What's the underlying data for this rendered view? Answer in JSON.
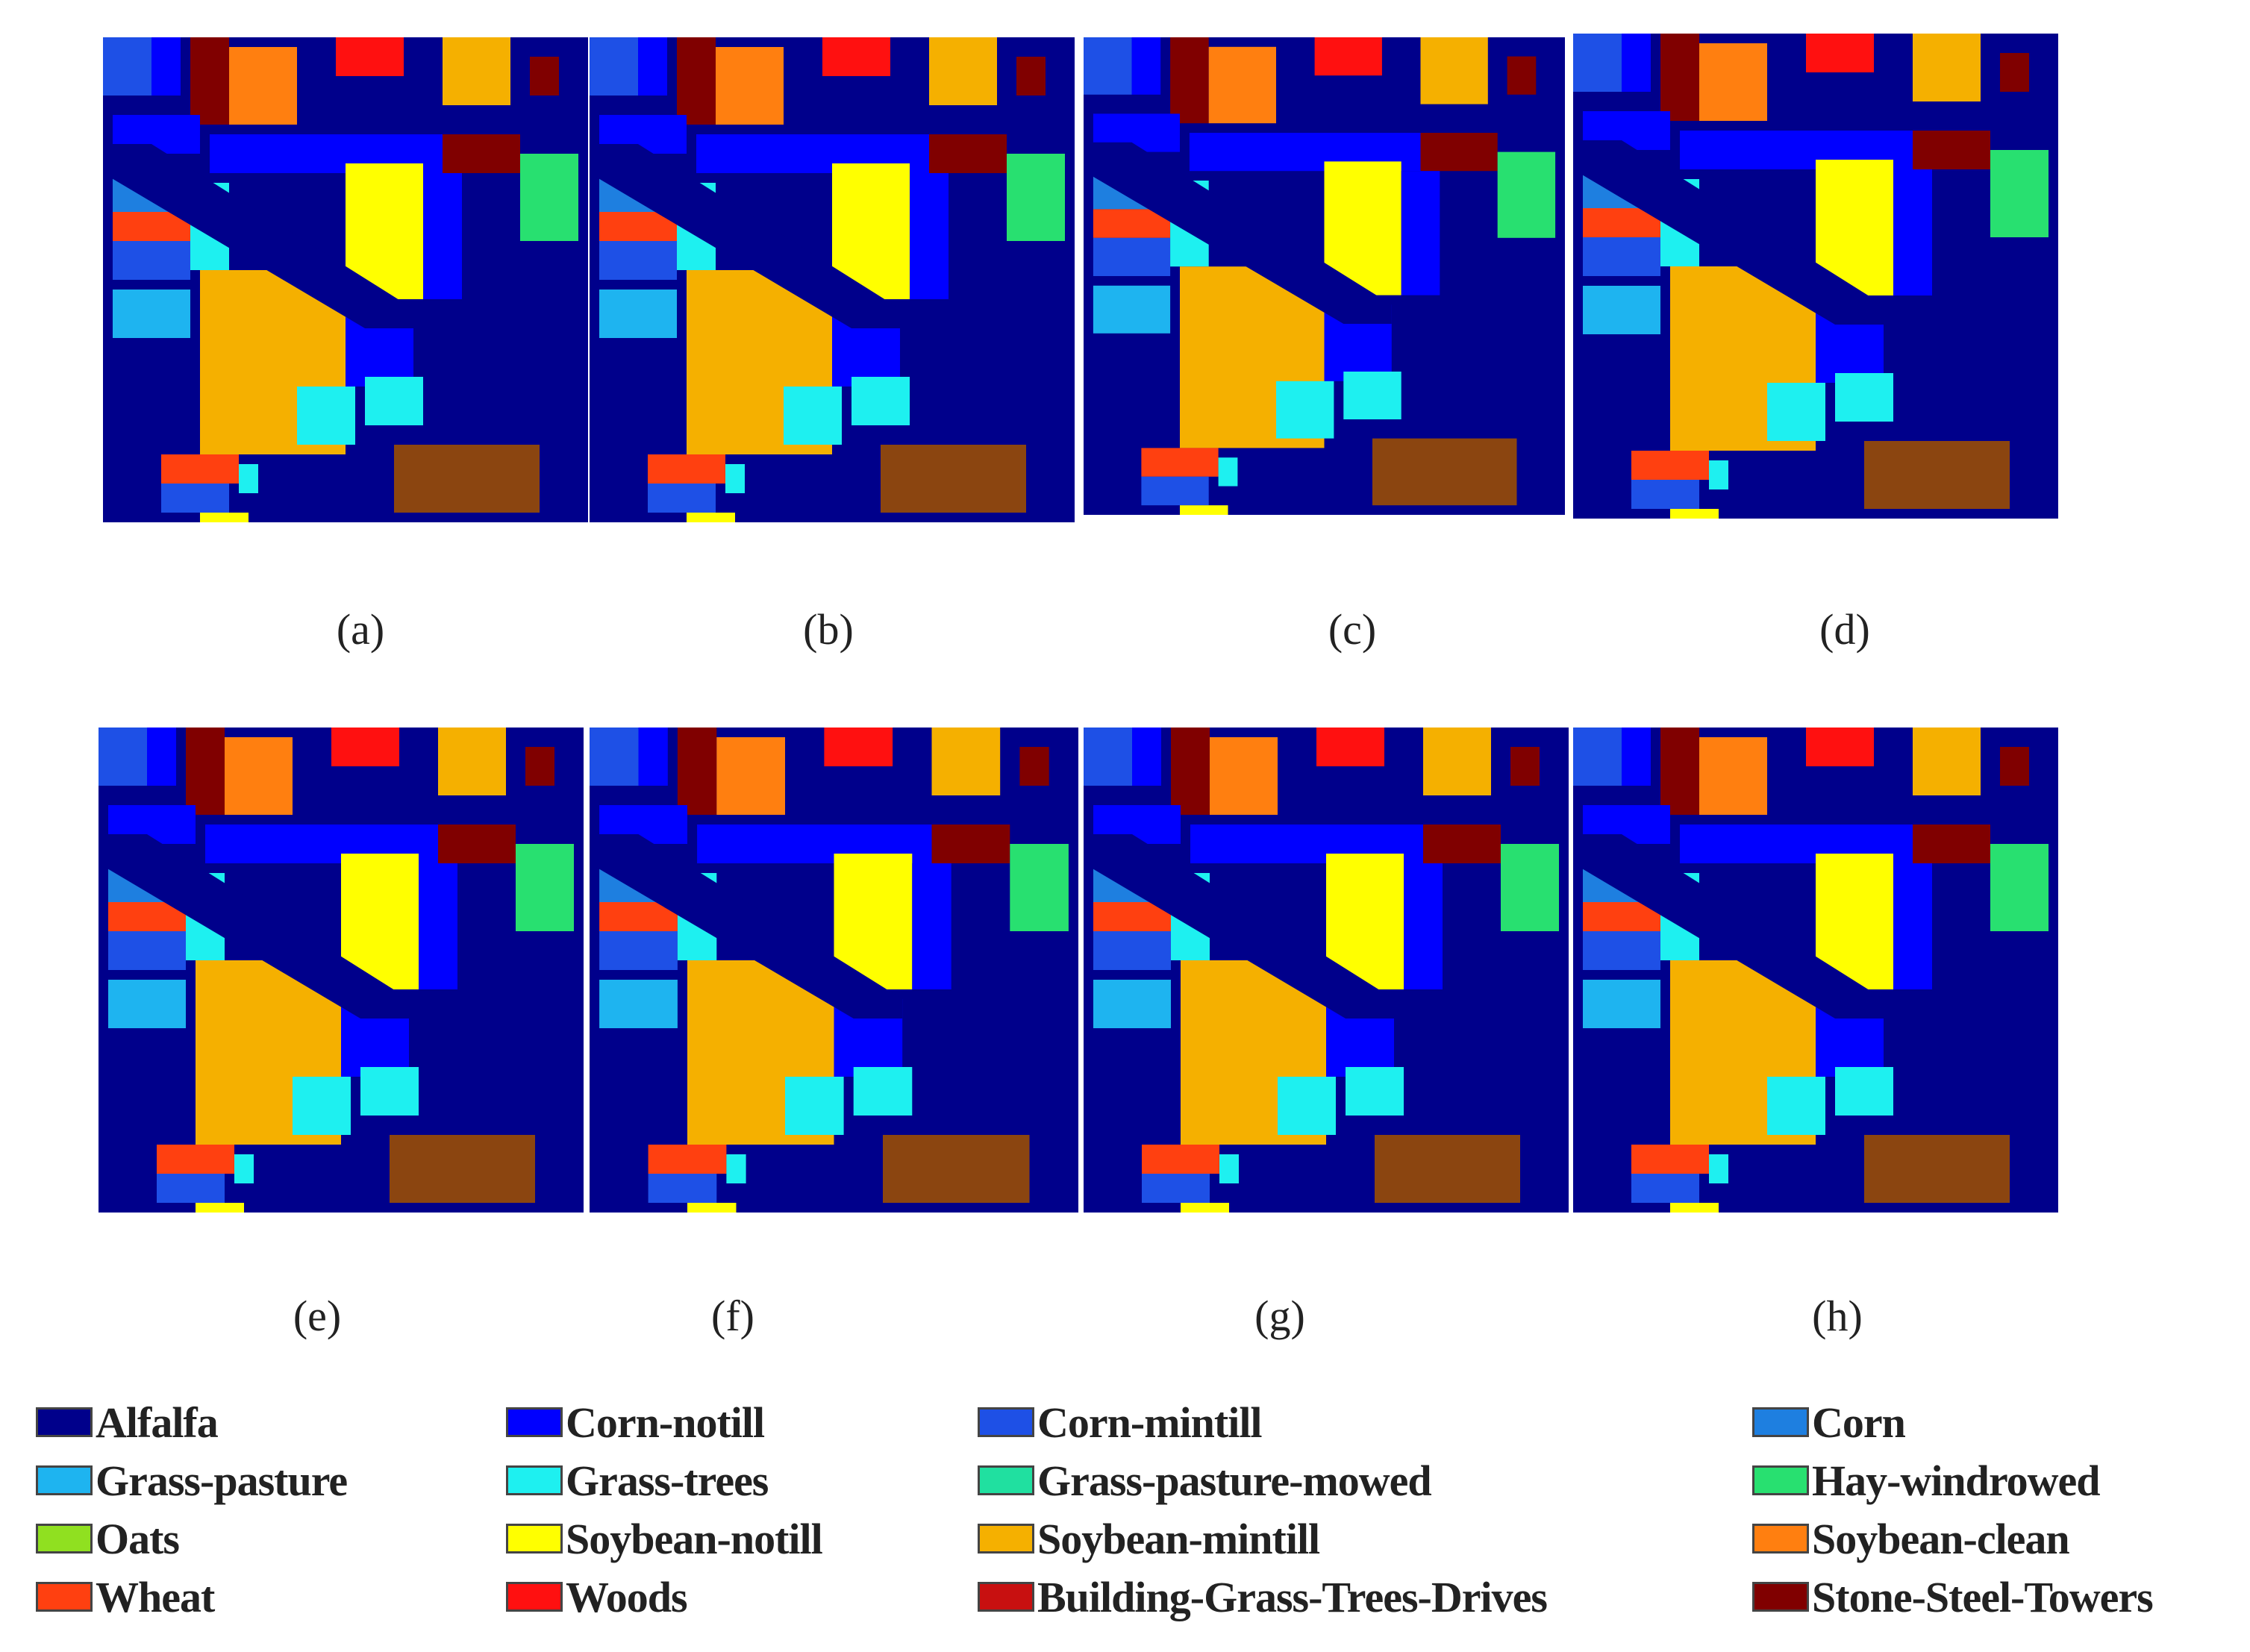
{
  "panels": [
    {
      "id": "a",
      "caption": "(a)"
    },
    {
      "id": "b",
      "caption": "(b)"
    },
    {
      "id": "c",
      "caption": "(c)"
    },
    {
      "id": "d",
      "caption": "(d)"
    },
    {
      "id": "e",
      "caption": "(e)"
    },
    {
      "id": "f",
      "caption": "(f)"
    },
    {
      "id": "g",
      "caption": "(g)"
    },
    {
      "id": "h",
      "caption": "(h)"
    }
  ],
  "legend": [
    {
      "label": "Alfalfa",
      "color": "#00008B"
    },
    {
      "label": "Corn-notill",
      "color": "#0000FF"
    },
    {
      "label": "Corn-mintill",
      "color": "#1E50E6"
    },
    {
      "label": "Corn",
      "color": "#1E7FE0"
    },
    {
      "label": "Grass-pasture",
      "color": "#1EB4F0"
    },
    {
      "label": "Grass-trees",
      "color": "#1EF0F0"
    },
    {
      "label": "Grass-pasture-mowed",
      "color": "#20E0A0"
    },
    {
      "label": "Hay-windrowed",
      "color": "#28E070"
    },
    {
      "label": "Oats",
      "color": "#90E020"
    },
    {
      "label": "Soybean-notill",
      "color": "#FFFF00"
    },
    {
      "label": "Soybean-mintill",
      "color": "#F5B000"
    },
    {
      "label": "Soybean-clean",
      "color": "#FF7F10"
    },
    {
      "label": "Wheat",
      "color": "#FF4010"
    },
    {
      "label": "Woods",
      "color": "#FF1010"
    },
    {
      "label": "Building-Grass-Trees-Drives",
      "color": "#C81010"
    },
    {
      "label": "Stone-Steel-Towers",
      "color": "#800000"
    }
  ]
}
